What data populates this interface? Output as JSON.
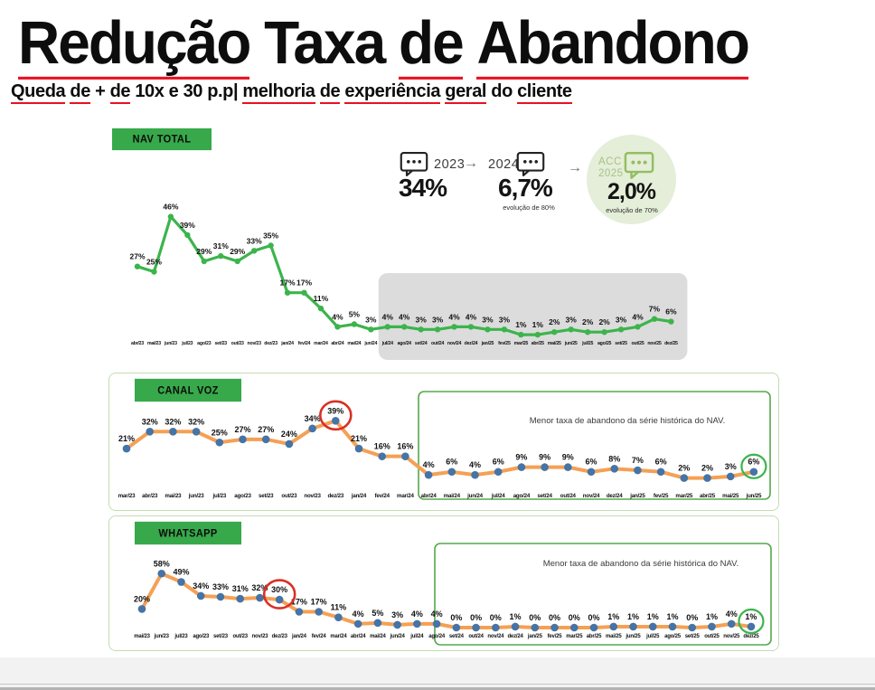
{
  "header": {
    "title_words": [
      {
        "t": "Redução",
        "u": true
      },
      {
        "t": "Taxa",
        "u": false
      },
      {
        "t": "de",
        "u": true
      },
      {
        "t": "Abandono",
        "u": true
      }
    ],
    "subtitle_words": [
      {
        "t": "Queda",
        "u": true
      },
      {
        "t": "de",
        "u": true
      },
      {
        "t": "+",
        "u": false
      },
      {
        "t": "de",
        "u": true
      },
      {
        "t": "10x",
        "u": false
      },
      {
        "t": "e",
        "u": false
      },
      {
        "t": "30",
        "u": false
      },
      {
        "t": "p.p|",
        "u": false
      },
      {
        "t": "melhoria",
        "u": true
      },
      {
        "t": "de",
        "u": true
      },
      {
        "t": "experiência",
        "u": true
      },
      {
        "t": "geral",
        "u": true
      },
      {
        "t": "do",
        "u": false
      },
      {
        "t": "cliente",
        "u": true
      }
    ]
  },
  "stats": {
    "arrow": "→",
    "items": [
      {
        "label": "2023",
        "value": "34%",
        "note": ""
      },
      {
        "label": "2024",
        "value": "6,7%",
        "note": "evolução de 80%"
      },
      {
        "label": "ACC\n2025",
        "value": "2,0%",
        "note": "evolução de 70%"
      }
    ]
  },
  "chart_data": [
    {
      "type": "line",
      "title": "NAV TOTAL",
      "unit": "%",
      "categories": [
        "abr/23",
        "mai/23",
        "jun/23",
        "jul/23",
        "ago/23",
        "set/23",
        "out/23",
        "nov/23",
        "dez/23",
        "jan/24",
        "fev/24",
        "mar/24",
        "abr/24",
        "mai/24",
        "jun/24",
        "jul/24",
        "ago/24",
        "set/24",
        "out/24",
        "nov/24",
        "dez/24",
        "jan/25",
        "fev/25",
        "mar/25",
        "abr/25",
        "mai/25",
        "jun/25",
        "jul/25",
        "ago/25",
        "set/25",
        "out/25",
        "nov/25",
        "dez/25"
      ],
      "values": [
        27,
        25,
        46,
        39,
        29,
        31,
        29,
        33,
        35,
        17,
        17,
        11,
        4,
        5,
        3,
        4,
        4,
        3,
        3,
        4,
        4,
        3,
        3,
        1,
        1,
        2,
        3,
        2,
        2,
        3,
        4,
        7,
        6
      ],
      "shaded_region": {
        "from": "jul/24",
        "to": "dez/25",
        "from_index": 15,
        "to_index": 32
      }
    },
    {
      "type": "line",
      "title": "CANAL VOZ",
      "unit": "%",
      "categories": [
        "mar/23",
        "abr/23",
        "mai/23",
        "jun/23",
        "jul/23",
        "ago/23",
        "set/23",
        "out/23",
        "nov/23",
        "dez/23",
        "jan/24",
        "fev/24",
        "mar/24",
        "abr/24",
        "mai/24",
        "jun/24",
        "jul/24",
        "ago/24",
        "set/24",
        "out/24",
        "nov/24",
        "dez/24",
        "jan/25",
        "fev/25",
        "mar/25",
        "abr/25",
        "mai/25",
        "jun/25"
      ],
      "values": [
        21,
        32,
        32,
        32,
        25,
        27,
        27,
        24,
        34,
        39,
        21,
        16,
        16,
        4,
        6,
        4,
        6,
        9,
        9,
        9,
        6,
        8,
        7,
        6,
        2,
        2,
        3,
        6
      ],
      "highlight_red": {
        "category": "dez/23",
        "index": 9
      },
      "highlight_green": {
        "category": "jun/25",
        "index": 27
      },
      "annotation": "Menor taxa de abandono da série histórica do NAV.",
      "annotation_from_index": 13
    },
    {
      "type": "line",
      "title": "WHATSAPP",
      "unit": "%",
      "categories": [
        "mai/23",
        "jun/23",
        "jul/23",
        "ago/23",
        "set/23",
        "out/23",
        "nov/23",
        "dez/23",
        "jan/24",
        "fev/24",
        "mar/24",
        "abr/24",
        "mai/24",
        "jun/24",
        "jul/24",
        "ago/24",
        "set/24",
        "out/24",
        "nov/24",
        "dez/24",
        "jan/25",
        "fev/25",
        "mar/25",
        "abr/25",
        "mai/25",
        "jun/25",
        "jul/25",
        "ago/25",
        "set/25",
        "out/25",
        "nov/25",
        "dez/25"
      ],
      "values": [
        20,
        58,
        49,
        34,
        33,
        31,
        32,
        30,
        17,
        17,
        11,
        4,
        5,
        3,
        4,
        4,
        0,
        0,
        0,
        1,
        0,
        0,
        0,
        0,
        1,
        1,
        1,
        1,
        0,
        1,
        4,
        1
      ],
      "highlight_red": {
        "category": "dez/23",
        "index": 7
      },
      "highlight_green": {
        "category": "dez/25",
        "index": 31
      },
      "annotation": "Menor taxa de abandono da série histórica do NAV.",
      "annotation_from_index": 16
    }
  ],
  "colors": {
    "accent_green": "#37a94b",
    "line_green": "#3cb44c",
    "line_orange": "#f5a054",
    "dot_blue": "#4574a6",
    "red": "#d93025",
    "underline_red": "#e81123",
    "panel_border": "#c3ddb3",
    "annotation_border": "#55a84b",
    "shade_gray": "#dcdcdc",
    "circle_bg": "#e4eed8",
    "acc_green": "#a9c286",
    "bubble_green": "#94bd62"
  }
}
